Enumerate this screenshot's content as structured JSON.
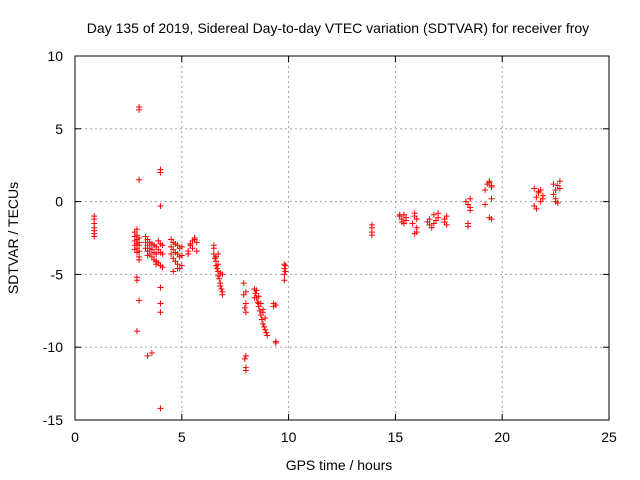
{
  "chart_data": {
    "type": "scatter",
    "title": "Day 135 of 2019, Sidereal Day-to-day VTEC variation (SDTVAR) for receiver froy",
    "xlabel": "GPS time / hours",
    "ylabel": "SDTVAR / TECUs",
    "xlim": [
      0,
      25
    ],
    "ylim": [
      -15,
      10
    ],
    "xticks": [
      0,
      5,
      10,
      15,
      20,
      25
    ],
    "yticks": [
      -15,
      -10,
      -5,
      0,
      5,
      10
    ],
    "xtick_labels": [
      "0",
      "5",
      "10",
      "15",
      "20",
      "25"
    ],
    "ytick_labels": [
      "-15",
      "-10",
      "-5",
      "0",
      "5",
      "10"
    ],
    "grid": true,
    "marker": "+",
    "colors": {
      "series": "#ff0000",
      "grid": "#a0a0a0",
      "axis": "#000000"
    },
    "series": [
      {
        "name": "SDTVAR",
        "x": [
          0.9,
          0.9,
          0.9,
          0.9,
          0.9,
          0.9,
          0.9,
          2.8,
          2.8,
          2.8,
          2.8,
          2.8,
          2.9,
          2.9,
          2.9,
          2.9,
          2.9,
          3.0,
          3.0,
          3.0,
          3.0,
          3.0,
          3.0,
          2.9,
          2.9,
          2.9,
          3.0,
          3.0,
          3.0,
          3.0,
          2.9,
          3.3,
          3.3,
          3.3,
          3.4,
          3.4,
          3.4,
          3.4,
          3.5,
          3.5,
          3.5,
          3.6,
          3.6,
          3.6,
          3.7,
          3.7,
          3.7,
          3.8,
          3.8,
          3.8,
          3.9,
          3.9,
          3.9,
          4.0,
          4.0,
          4.0,
          4.1,
          4.1,
          4.1,
          3.4,
          3.6,
          3.8,
          4.0,
          4.0,
          4.0,
          4.0,
          4.0,
          4.0,
          4.0,
          4.5,
          4.5,
          4.5,
          4.6,
          4.6,
          4.6,
          4.7,
          4.7,
          4.7,
          4.8,
          4.8,
          4.8,
          4.9,
          4.9,
          4.9,
          5.0,
          5.0,
          5.0,
          4.6,
          4.8,
          5.3,
          5.4,
          5.5,
          5.6,
          5.7,
          5.3,
          5.5,
          5.7,
          5.4,
          5.6,
          6.5,
          6.5,
          6.55,
          6.6,
          6.6,
          6.65,
          6.7,
          6.7,
          6.75,
          6.8,
          6.8,
          6.85,
          6.9,
          6.9,
          6.6,
          6.7,
          6.8,
          6.5,
          6.7,
          6.9,
          7.9,
          7.9,
          7.95,
          8.0,
          8.0,
          7.95,
          8.0,
          8.0,
          8.0,
          8.0,
          8.4,
          8.45,
          8.5,
          8.55,
          8.6,
          8.65,
          8.7,
          8.75,
          8.8,
          8.85,
          8.9,
          8.95,
          9.0,
          8.5,
          8.6,
          8.7,
          8.8,
          8.9,
          8.4,
          8.6,
          8.8,
          9.3,
          9.3,
          9.4,
          9.4,
          9.4,
          9.8,
          9.8,
          9.8,
          9.8,
          9.85,
          9.85,
          13.9,
          13.9,
          13.9,
          13.9,
          15.2,
          15.3,
          15.4,
          15.5,
          15.3,
          15.5,
          15.2,
          15.4,
          15.9,
          15.9,
          16.0,
          16.0,
          15.8,
          15.9,
          16.0,
          16.5,
          16.6,
          16.7,
          16.8,
          16.9,
          17.0,
          16.6,
          16.8,
          17.0,
          17.3,
          17.3,
          17.4,
          17.4,
          18.4,
          18.4,
          18.5,
          18.5,
          18.3,
          18.5,
          18.4,
          19.2,
          19.2,
          19.3,
          19.4,
          19.4,
          19.5,
          19.5,
          19.4,
          19.5,
          19.5,
          21.5,
          21.6,
          21.7,
          21.8,
          21.9,
          21.6,
          21.8,
          21.5,
          21.7,
          21.9,
          22.4,
          22.5,
          22.6,
          22.7,
          22.5,
          22.6,
          22.4,
          22.7,
          22.5
        ],
        "y": [
          -1.0,
          -1.2,
          -1.5,
          -1.8,
          -2.0,
          -2.2,
          -2.4,
          -2.1,
          -2.4,
          -2.7,
          -3.0,
          -3.3,
          -3.5,
          -3.2,
          -2.9,
          -2.6,
          -2.3,
          -3.0,
          -3.4,
          -3.8,
          -2.5,
          -2.8,
          -4.0,
          -5.2,
          -5.4,
          -1.9,
          6.3,
          6.5,
          1.5,
          -6.8,
          -8.9,
          -2.4,
          -2.8,
          -3.2,
          -2.6,
          -3.0,
          -3.4,
          -3.7,
          -2.8,
          -3.2,
          -3.6,
          -2.9,
          -3.3,
          -3.8,
          -3.0,
          -3.5,
          -4.0,
          -3.1,
          -3.6,
          -4.1,
          -2.7,
          -3.3,
          -4.2,
          -2.9,
          -3.5,
          -4.4,
          -3.0,
          -3.6,
          -4.5,
          -10.6,
          -10.4,
          -4.3,
          2.2,
          2.0,
          -0.3,
          -5.9,
          -7.0,
          -7.6,
          -14.2,
          -2.6,
          -3.1,
          -3.6,
          -2.8,
          -3.3,
          -3.9,
          -2.9,
          -3.5,
          -4.1,
          -3.0,
          -3.6,
          -4.3,
          -3.2,
          -3.8,
          -4.6,
          -3.1,
          -3.7,
          -4.4,
          -4.8,
          -4.6,
          -3.4,
          -3.0,
          -2.7,
          -2.5,
          -2.8,
          -3.6,
          -3.2,
          -3.4,
          -2.9,
          -2.6,
          -3.2,
          -3.6,
          -3.9,
          -4.1,
          -4.4,
          -4.6,
          -4.8,
          -5.1,
          -5.3,
          -5.6,
          -5.8,
          -6.0,
          -6.2,
          -6.4,
          -3.8,
          -4.3,
          -4.9,
          -3.0,
          -3.6,
          -5.0,
          -5.6,
          -6.4,
          -7.3,
          -7.6,
          -10.6,
          -10.8,
          -11.4,
          -11.6,
          -6.2,
          -7.0,
          -6.0,
          -6.3,
          -6.6,
          -6.9,
          -7.2,
          -7.5,
          -7.8,
          -8.1,
          -8.4,
          -8.6,
          -8.8,
          -9.0,
          -9.2,
          -6.1,
          -6.5,
          -7.0,
          -7.4,
          -8.0,
          -6.6,
          -7.0,
          -7.6,
          -7.0,
          -7.2,
          -7.1,
          -9.6,
          -9.7,
          -4.3,
          -4.6,
          -5.0,
          -5.4,
          -4.4,
          -4.8,
          -1.6,
          -1.8,
          -2.1,
          -2.3,
          -1.0,
          -1.2,
          -0.9,
          -1.1,
          -1.4,
          -1.3,
          -0.9,
          -1.5,
          -0.8,
          -1.0,
          -1.8,
          -2.1,
          -1.5,
          -2.2,
          -1.2,
          -1.4,
          -1.6,
          -1.8,
          -1.5,
          -1.3,
          -1.1,
          -1.2,
          -0.9,
          -0.8,
          -1.2,
          -1.4,
          -1.0,
          -1.6,
          -1.5,
          -1.7,
          -0.6,
          -0.4,
          0.0,
          0.2,
          -0.2,
          -0.2,
          0.8,
          1.2,
          1.4,
          1.3,
          1.1,
          1.0,
          -1.1,
          -1.2,
          0.2,
          -0.3,
          0.3,
          0.6,
          0.8,
          0.4,
          -0.5,
          0.0,
          0.9,
          0.7,
          0.2,
          0.5,
          0.8,
          1.1,
          1.4,
          0.2,
          -0.1,
          1.2,
          0.9,
          0.0
        ]
      }
    ]
  }
}
